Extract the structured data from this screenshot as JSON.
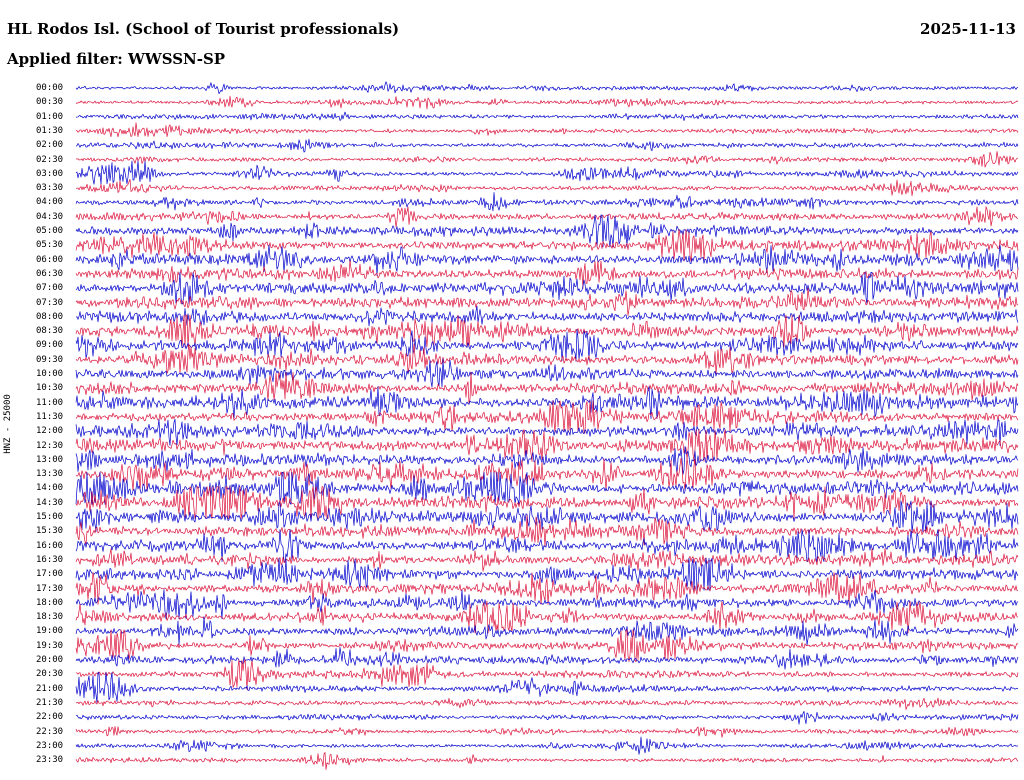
{
  "header": {
    "title": "HL Rodos Isl. (School of Tourist professionals)",
    "date": "2025-11-13",
    "filter_line": "Applied filter: WWSSN-SP"
  },
  "chart_data": {
    "type": "line",
    "subtype": "helicorder-daily-seismogram",
    "title": "HL Rodos Isl. (School of Tourist professionals)",
    "date": "2025-11-13",
    "applied_filter": "WWSSN-SP",
    "channel_label": "HNZ - 25000",
    "row_interval_minutes": 30,
    "rows_per_day": 48,
    "legend_position": "none",
    "grid": false,
    "background": "#ffffff",
    "trace_colors": [
      "#0000cd",
      "#dc143c"
    ],
    "time_labels": [
      "00:00",
      "00:30",
      "01:00",
      "01:30",
      "02:00",
      "02:30",
      "03:00",
      "03:30",
      "04:00",
      "04:30",
      "05:00",
      "05:30",
      "06:00",
      "06:30",
      "07:00",
      "07:30",
      "08:00",
      "08:30",
      "09:00",
      "09:30",
      "10:00",
      "10:30",
      "11:00",
      "11:30",
      "12:00",
      "12:30",
      "13:00",
      "13:30",
      "14:00",
      "14:30",
      "15:00",
      "15:30",
      "16:00",
      "16:30",
      "17:00",
      "17:30",
      "18:00",
      "18:30",
      "19:00",
      "19:30",
      "20:00",
      "20:30",
      "21:00",
      "21:30",
      "22:00",
      "22:30",
      "23:00",
      "23:30"
    ],
    "amplitude_envelope": [
      0.5,
      0.5,
      0.5,
      0.55,
      0.6,
      0.5,
      0.6,
      0.6,
      0.7,
      0.85,
      1.2,
      1.2,
      1.3,
      1.3,
      1.4,
      1.4,
      1.3,
      1.3,
      1.3,
      1.3,
      1.3,
      1.3,
      1.4,
      1.3,
      1.3,
      1.4,
      1.3,
      1.3,
      1.4,
      1.3,
      1.3,
      1.3,
      1.25,
      1.2,
      1.2,
      1.15,
      1.1,
      1.05,
      1.05,
      1.0,
      0.95,
      0.85,
      0.8,
      0.6,
      0.6,
      0.5,
      0.5,
      0.5
    ],
    "amplitude_units": "relative trace amplitude, estimated from plot (1.0 = typical daytime noise)",
    "x_axis": "minutes within each 30-minute row (no tick labels shown)"
  }
}
